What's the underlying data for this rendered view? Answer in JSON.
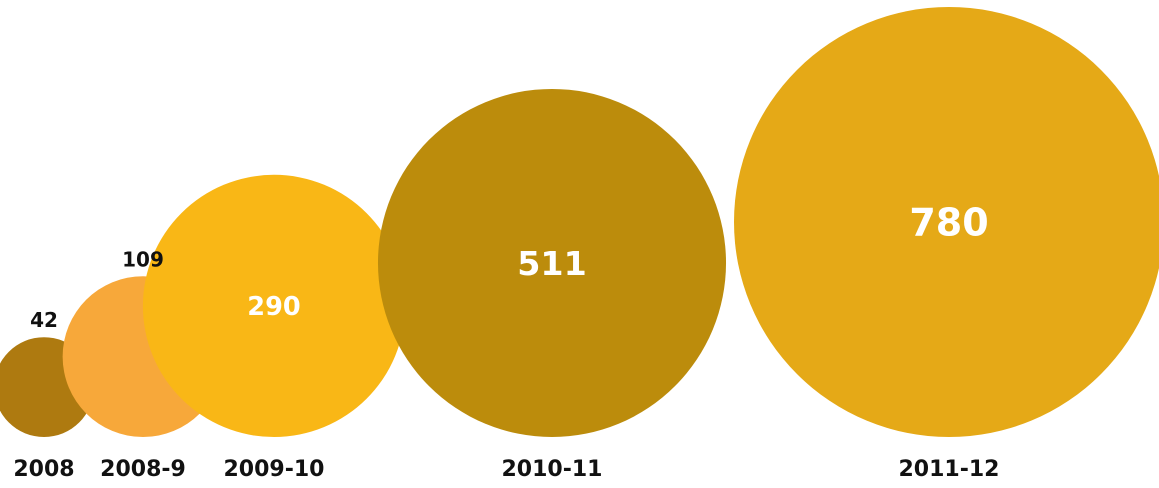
{
  "chart_data": {
    "type": "bubble",
    "title": "",
    "xlabel": "",
    "ylabel": "",
    "categories": [
      "2008",
      "2008-9",
      "2009-10",
      "2010-11",
      "2011-12"
    ],
    "values": [
      42,
      109,
      290,
      511,
      780
    ],
    "colors": [
      "#ae7a10",
      "#f7a83a",
      "#f9b716",
      "#bc8c0c",
      "#e5a917"
    ],
    "value_label_position": [
      "outside",
      "outside",
      "inside",
      "inside",
      "inside"
    ],
    "grid": false,
    "legend": "none"
  }
}
